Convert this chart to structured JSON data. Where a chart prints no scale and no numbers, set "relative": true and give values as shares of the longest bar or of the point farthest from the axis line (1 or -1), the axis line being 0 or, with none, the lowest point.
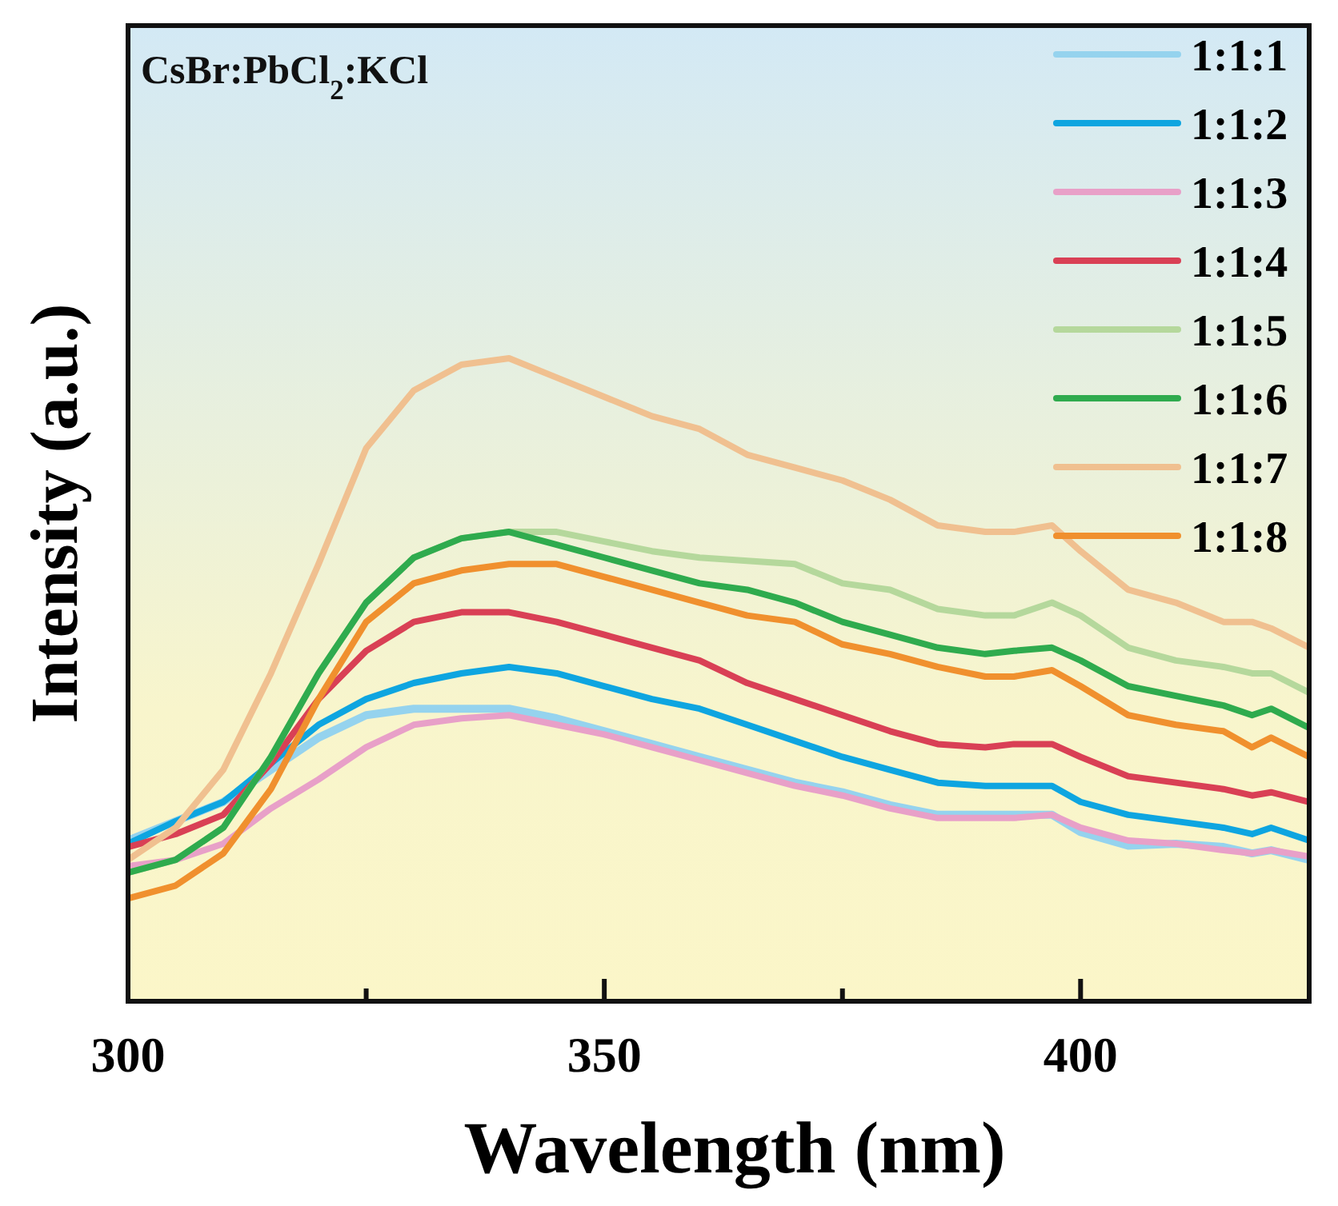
{
  "chart_data": {
    "type": "line",
    "relative": true,
    "xlabel": "Wavelength (nm)",
    "ylabel": "Intensity (a.u.)",
    "annotations": [
      "CsBr:PbCl$_{2}$:KCl"
    ],
    "x": [
      300,
      305,
      310,
      315,
      320,
      325,
      330,
      335,
      340,
      345,
      350,
      355,
      360,
      365,
      370,
      375,
      380,
      385,
      390,
      393,
      397,
      400,
      405,
      410,
      415,
      418,
      420,
      424
    ],
    "xlim": [
      300,
      424
    ],
    "xticks": [
      300,
      {
        "value": 325,
        "label": null
      },
      350,
      {
        "value": 375,
        "label": null
      },
      400
    ],
    "legend": "top right",
    "line_style": "solid",
    "marker": "none",
    "series": [
      {
        "name": "1:1:1",
        "color": "#95d3ee",
        "values": [
          0.25,
          0.28,
          0.31,
          0.36,
          0.41,
          0.445,
          0.455,
          0.455,
          0.455,
          0.44,
          0.42,
          0.4,
          0.38,
          0.36,
          0.34,
          0.325,
          0.305,
          0.29,
          0.29,
          0.29,
          0.29,
          0.263,
          0.242,
          0.245,
          0.24,
          0.23,
          0.235,
          0.22
        ]
      },
      {
        "name": "1:1:2",
        "color": "#0ea5e0",
        "values": [
          0.245,
          0.28,
          0.31,
          0.37,
          0.43,
          0.47,
          0.495,
          0.51,
          0.52,
          0.51,
          0.49,
          0.47,
          0.455,
          0.43,
          0.405,
          0.38,
          0.36,
          0.34,
          0.335,
          0.335,
          0.335,
          0.31,
          0.29,
          0.28,
          0.27,
          0.26,
          0.27,
          0.25
        ]
      },
      {
        "name": "1:1:3",
        "color": "#e8a0c8",
        "values": [
          0.21,
          0.22,
          0.245,
          0.3,
          0.345,
          0.395,
          0.43,
          0.44,
          0.445,
          0.43,
          0.415,
          0.395,
          0.375,
          0.355,
          0.335,
          0.32,
          0.3,
          0.285,
          0.285,
          0.285,
          0.29,
          0.27,
          0.25,
          0.245,
          0.235,
          0.23,
          0.235,
          0.225
        ]
      },
      {
        "name": "1:1:4",
        "color": "#d94055",
        "values": [
          0.24,
          0.26,
          0.29,
          0.37,
          0.47,
          0.545,
          0.59,
          0.605,
          0.605,
          0.59,
          0.57,
          0.55,
          0.53,
          0.495,
          0.47,
          0.445,
          0.42,
          0.4,
          0.395,
          0.4,
          0.4,
          0.38,
          0.35,
          0.34,
          0.33,
          0.32,
          0.325,
          0.31
        ]
      },
      {
        "name": "1:1:5",
        "color": "#b5d89c",
        "values": [
          0.2,
          0.22,
          0.27,
          0.38,
          0.51,
          0.62,
          0.69,
          0.72,
          0.73,
          0.73,
          0.715,
          0.7,
          0.69,
          0.685,
          0.68,
          0.65,
          0.64,
          0.61,
          0.6,
          0.6,
          0.62,
          0.6,
          0.55,
          0.53,
          0.52,
          0.51,
          0.51,
          0.48
        ]
      },
      {
        "name": "1:1:6",
        "color": "#2fab4e",
        "values": [
          0.2,
          0.22,
          0.27,
          0.38,
          0.51,
          0.62,
          0.69,
          0.72,
          0.73,
          0.71,
          0.69,
          0.67,
          0.65,
          0.64,
          0.62,
          0.59,
          0.57,
          0.55,
          0.54,
          0.545,
          0.55,
          0.53,
          0.49,
          0.475,
          0.46,
          0.445,
          0.455,
          0.425
        ]
      },
      {
        "name": "1:1:7",
        "color": "#f0c090",
        "values": [
          0.22,
          0.27,
          0.36,
          0.51,
          0.68,
          0.86,
          0.95,
          0.99,
          1.0,
          0.97,
          0.94,
          0.91,
          0.89,
          0.85,
          0.83,
          0.81,
          0.78,
          0.74,
          0.73,
          0.73,
          0.74,
          0.7,
          0.64,
          0.62,
          0.59,
          0.59,
          0.58,
          0.55
        ]
      },
      {
        "name": "1:1:8",
        "color": "#f0902e",
        "values": [
          0.16,
          0.18,
          0.23,
          0.33,
          0.47,
          0.59,
          0.65,
          0.67,
          0.68,
          0.68,
          0.66,
          0.64,
          0.62,
          0.6,
          0.59,
          0.555,
          0.54,
          0.52,
          0.505,
          0.505,
          0.515,
          0.49,
          0.445,
          0.43,
          0.42,
          0.395,
          0.41,
          0.38
        ]
      }
    ]
  }
}
